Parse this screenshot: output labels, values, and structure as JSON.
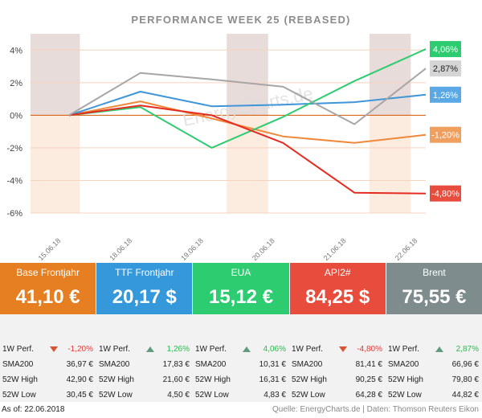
{
  "chart_data": {
    "type": "line",
    "title": "PERFORMANCE   WEEK 25 (REBASED)",
    "categories": [
      "15.06.18",
      "18.06.18",
      "19.06.18",
      "20.06.18",
      "21.06.18",
      "22.06.18"
    ],
    "ylim": [
      -6,
      5
    ],
    "yticks": [
      "4%",
      "2%",
      "0%",
      "-2%",
      "-4%",
      "-6%"
    ],
    "series": [
      {
        "name": "Base Frontjahr",
        "color": "#f0883a",
        "values": [
          0,
          0.85,
          -0.2,
          -1.3,
          -1.7,
          -1.2
        ],
        "label": "-1,20%",
        "label_text_dark": false
      },
      {
        "name": "TTF Frontjahr",
        "color": "#3e95d8",
        "values": [
          0,
          1.45,
          0.55,
          0.65,
          0.8,
          1.26
        ],
        "label": "1,26%",
        "label_text_dark": false
      },
      {
        "name": "EUA",
        "color": "#2ecc71",
        "values": [
          0,
          0.5,
          -2.0,
          -0.1,
          2.1,
          4.06
        ],
        "label": "4,06%",
        "label_text_dark": false
      },
      {
        "name": "API2#",
        "color": "#e52b20",
        "values": [
          0,
          0.6,
          0.0,
          -1.7,
          -4.75,
          -4.8
        ],
        "label": "-4,80%",
        "label_text_dark": false
      },
      {
        "name": "Brent",
        "color": "#a6a6a6",
        "values": [
          0,
          2.6,
          2.2,
          1.75,
          -0.55,
          2.87
        ],
        "label": "2,87%",
        "label_text_dark": true
      }
    ],
    "label_colors": {
      "Base Frontjahr": "#f0a05e",
      "TTF Frontjahr": "#5aa9e6",
      "EUA": "#2ecc71",
      "API2#": "#e74c3c",
      "Brent": "#d5d5d5"
    },
    "watermark": "EnergyCharts.de"
  },
  "boxes": [
    {
      "name": "Base Frontjahr",
      "price": "41,10 €",
      "color": "#e67e22"
    },
    {
      "name": "TTF Frontjahr",
      "price": "20,17 $",
      "color": "#3498db"
    },
    {
      "name": "EUA",
      "price": "15,12 €",
      "color": "#2ecc71"
    },
    {
      "name": "API2#",
      "price": "84,25 $",
      "color": "#e74c3c"
    },
    {
      "name": "Brent",
      "price": "75,55 €",
      "color": "#7f8c8d"
    }
  ],
  "stats": [
    {
      "perf_label": "1W Perf.",
      "perf": "-1,20%",
      "dir": "down",
      "sma_label": "SMA200",
      "sma": "36,97 €",
      "high_label": "52W High",
      "high": "42,90 €",
      "low_label": "52W Low",
      "low": "30,45 €"
    },
    {
      "perf_label": "1W Perf.",
      "perf": "1,26%",
      "dir": "up",
      "sma_label": "SMA200",
      "sma": "17,83 €",
      "high_label": "52W High",
      "high": "21,60 €",
      "low_label": "52W Low",
      "low": "4,50 €"
    },
    {
      "perf_label": "1W Perf.",
      "perf": "4,06%",
      "dir": "up",
      "sma_label": "SMA200",
      "sma": "10,31 €",
      "high_label": "52W High",
      "high": "16,31 €",
      "low_label": "52W Low",
      "low": "4,83 €"
    },
    {
      "perf_label": "1W Perf.",
      "perf": "-4,80%",
      "dir": "down",
      "sma_label": "SMA200",
      "sma": "81,41 €",
      "high_label": "52W High",
      "high": "90,25 €",
      "low_label": "52W Low",
      "low": "64,28 €"
    },
    {
      "perf_label": "1W Perf.",
      "perf": "2,87%",
      "dir": "up",
      "sma_label": "SMA200",
      "sma": "66,96 €",
      "high_label": "52W High",
      "high": "79,80 €",
      "low_label": "52W Low",
      "low": "44,82 €"
    }
  ],
  "footer": {
    "as_of": "As of: 22.06.2018",
    "source": "Quelle: EnergyCharts.de | Daten: Thomson Reuters Eikon"
  }
}
